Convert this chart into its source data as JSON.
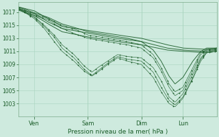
{
  "xlabel": "Pression niveau de la mer( hPa )",
  "background_color": "#ceeade",
  "grid_color": "#a8d4be",
  "line_color": "#1a5c28",
  "ylim_min": 1001.0,
  "ylim_max": 1018.5,
  "yticks": [
    1003,
    1005,
    1007,
    1009,
    1011,
    1013,
    1015,
    1017
  ],
  "xtick_labels": [
    "Ven",
    "Sam",
    "Dim",
    "Lun"
  ],
  "xtick_positions": [
    0.08,
    0.35,
    0.62,
    0.83
  ],
  "xlim_min": 0.0,
  "xlim_max": 1.0,
  "font_color": "#1a5c28",
  "font_size_ytick": 5.5,
  "font_size_xtick": 6.0,
  "font_size_xlabel": 6.5,
  "line_width": 0.7,
  "marker_size": 1.0,
  "lines": [
    {
      "points": [
        [
          0.0,
          1017.8
        ],
        [
          0.08,
          1017.2
        ],
        [
          0.15,
          1016.0
        ],
        [
          0.22,
          1014.8
        ],
        [
          0.35,
          1014.2
        ],
        [
          0.5,
          1013.5
        ],
        [
          0.62,
          1013.0
        ],
        [
          0.75,
          1012.0
        ],
        [
          0.83,
          1011.5
        ],
        [
          0.95,
          1011.3
        ],
        [
          1.0,
          1011.5
        ]
      ],
      "dotted": false
    },
    {
      "points": [
        [
          0.0,
          1017.5
        ],
        [
          0.08,
          1016.8
        ],
        [
          0.15,
          1015.5
        ],
        [
          0.22,
          1014.5
        ],
        [
          0.35,
          1013.8
        ],
        [
          0.5,
          1013.0
        ],
        [
          0.62,
          1012.5
        ],
        [
          0.75,
          1011.5
        ],
        [
          0.83,
          1011.2
        ],
        [
          0.95,
          1011.0
        ],
        [
          1.0,
          1011.2
        ]
      ],
      "dotted": false
    },
    {
      "points": [
        [
          0.0,
          1017.3
        ],
        [
          0.08,
          1016.5
        ],
        [
          0.15,
          1015.2
        ],
        [
          0.22,
          1014.0
        ],
        [
          0.35,
          1013.2
        ],
        [
          0.5,
          1012.5
        ],
        [
          0.62,
          1012.0
        ],
        [
          0.75,
          1011.2
        ],
        [
          0.83,
          1011.0
        ],
        [
          0.95,
          1010.8
        ],
        [
          1.0,
          1011.0
        ]
      ],
      "dotted": false
    },
    {
      "points": [
        [
          0.0,
          1017.5
        ],
        [
          0.08,
          1016.3
        ],
        [
          0.13,
          1015.0
        ],
        [
          0.18,
          1013.5
        ],
        [
          0.22,
          1012.0
        ],
        [
          0.28,
          1010.5
        ],
        [
          0.33,
          1008.8
        ],
        [
          0.37,
          1007.8
        ],
        [
          0.4,
          1008.5
        ],
        [
          0.45,
          1009.5
        ],
        [
          0.5,
          1010.5
        ],
        [
          0.55,
          1010.2
        ],
        [
          0.62,
          1010.0
        ],
        [
          0.68,
          1008.5
        ],
        [
          0.72,
          1006.5
        ],
        [
          0.76,
          1004.0
        ],
        [
          0.79,
          1003.2
        ],
        [
          0.83,
          1004.5
        ],
        [
          0.88,
          1007.5
        ],
        [
          0.92,
          1010.0
        ],
        [
          0.95,
          1011.0
        ],
        [
          1.0,
          1011.2
        ]
      ],
      "dotted": true
    },
    {
      "points": [
        [
          0.0,
          1017.4
        ],
        [
          0.08,
          1016.2
        ],
        [
          0.13,
          1014.8
        ],
        [
          0.18,
          1013.2
        ],
        [
          0.22,
          1011.5
        ],
        [
          0.28,
          1010.0
        ],
        [
          0.33,
          1008.3
        ],
        [
          0.37,
          1007.3
        ],
        [
          0.4,
          1008.0
        ],
        [
          0.45,
          1009.2
        ],
        [
          0.5,
          1010.2
        ],
        [
          0.55,
          1009.8
        ],
        [
          0.62,
          1009.5
        ],
        [
          0.68,
          1007.8
        ],
        [
          0.72,
          1005.5
        ],
        [
          0.76,
          1003.5
        ],
        [
          0.79,
          1002.8
        ],
        [
          0.83,
          1004.0
        ],
        [
          0.88,
          1007.0
        ],
        [
          0.92,
          1009.8
        ],
        [
          0.95,
          1010.8
        ],
        [
          1.0,
          1011.0
        ]
      ],
      "dotted": true
    },
    {
      "points": [
        [
          0.0,
          1017.6
        ],
        [
          0.08,
          1016.5
        ],
        [
          0.15,
          1015.8
        ],
        [
          0.22,
          1014.5
        ],
        [
          0.3,
          1013.5
        ],
        [
          0.35,
          1013.0
        ],
        [
          0.45,
          1012.5
        ],
        [
          0.55,
          1012.0
        ],
        [
          0.62,
          1011.5
        ],
        [
          0.68,
          1010.0
        ],
        [
          0.72,
          1008.0
        ],
        [
          0.76,
          1005.5
        ],
        [
          0.79,
          1004.2
        ],
        [
          0.83,
          1005.0
        ],
        [
          0.88,
          1008.0
        ],
        [
          0.92,
          1010.5
        ],
        [
          0.95,
          1011.2
        ],
        [
          1.0,
          1011.3
        ]
      ],
      "dotted": true
    },
    {
      "points": [
        [
          0.0,
          1017.7
        ],
        [
          0.08,
          1016.7
        ],
        [
          0.15,
          1016.0
        ],
        [
          0.22,
          1015.0
        ],
        [
          0.3,
          1014.2
        ],
        [
          0.35,
          1013.5
        ],
        [
          0.45,
          1013.0
        ],
        [
          0.55,
          1012.5
        ],
        [
          0.62,
          1012.0
        ],
        [
          0.68,
          1010.5
        ],
        [
          0.72,
          1008.5
        ],
        [
          0.76,
          1006.0
        ],
        [
          0.79,
          1004.8
        ],
        [
          0.83,
          1005.5
        ],
        [
          0.88,
          1008.5
        ],
        [
          0.92,
          1010.8
        ],
        [
          0.95,
          1011.3
        ],
        [
          1.0,
          1011.4
        ]
      ],
      "dotted": true
    },
    {
      "points": [
        [
          0.0,
          1017.8
        ],
        [
          0.08,
          1016.9
        ],
        [
          0.15,
          1016.2
        ],
        [
          0.22,
          1015.2
        ],
        [
          0.3,
          1014.5
        ],
        [
          0.35,
          1014.0
        ],
        [
          0.45,
          1013.5
        ],
        [
          0.55,
          1013.0
        ],
        [
          0.62,
          1012.5
        ],
        [
          0.68,
          1011.2
        ],
        [
          0.72,
          1009.5
        ],
        [
          0.76,
          1007.2
        ],
        [
          0.79,
          1006.0
        ],
        [
          0.83,
          1007.0
        ],
        [
          0.88,
          1009.5
        ],
        [
          0.92,
          1011.0
        ],
        [
          0.95,
          1011.5
        ],
        [
          1.0,
          1011.5
        ]
      ],
      "dotted": false
    },
    {
      "points": [
        [
          0.0,
          1017.6
        ],
        [
          0.08,
          1016.0
        ],
        [
          0.13,
          1014.5
        ],
        [
          0.18,
          1012.5
        ],
        [
          0.22,
          1011.0
        ],
        [
          0.28,
          1009.5
        ],
        [
          0.33,
          1008.0
        ],
        [
          0.37,
          1007.2
        ],
        [
          0.4,
          1007.8
        ],
        [
          0.45,
          1009.0
        ],
        [
          0.5,
          1010.0
        ],
        [
          0.55,
          1009.5
        ],
        [
          0.62,
          1009.0
        ],
        [
          0.68,
          1007.0
        ],
        [
          0.72,
          1004.8
        ],
        [
          0.76,
          1003.0
        ],
        [
          0.79,
          1002.5
        ],
        [
          0.83,
          1003.8
        ],
        [
          0.88,
          1006.8
        ],
        [
          0.92,
          1009.5
        ],
        [
          0.95,
          1010.8
        ],
        [
          1.0,
          1011.0
        ]
      ],
      "dotted": true
    }
  ]
}
